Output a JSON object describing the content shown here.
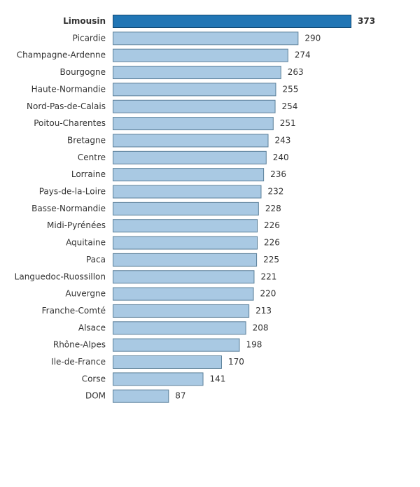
{
  "chart_data": {
    "type": "bar",
    "orientation": "horizontal",
    "categories": [
      "Limousin",
      "Picardie",
      "Champagne-Ardenne",
      "Bourgogne",
      "Haute-Normandie",
      "Nord-Pas-de-Calais",
      "Poitou-Charentes",
      "Bretagne",
      "Centre",
      "Lorraine",
      "Pays-de-la-Loire",
      "Basse-Normandie",
      "Midi-Pyrénées",
      "Aquitaine",
      "Paca",
      "Languedoc-Ruossillon",
      "Auvergne",
      "Franche-Comté",
      "Alsace",
      "Rhône-Alpes",
      "Ile-de-France",
      "Corse",
      "DOM"
    ],
    "values": [
      373,
      290,
      274,
      263,
      255,
      254,
      251,
      243,
      240,
      236,
      232,
      228,
      226,
      226,
      225,
      221,
      220,
      213,
      208,
      198,
      170,
      141,
      87
    ],
    "highlight_index": 0,
    "title": "",
    "xlabel": "",
    "ylabel": "",
    "xlim": [
      0,
      373
    ],
    "grid": false,
    "legend": "none",
    "colors": {
      "bar": "#a9c9e3",
      "bar_stroke": "#5a7f99",
      "highlight_bar": "#2176b5",
      "highlight_stroke": "#10456e",
      "text": "#333333"
    }
  }
}
